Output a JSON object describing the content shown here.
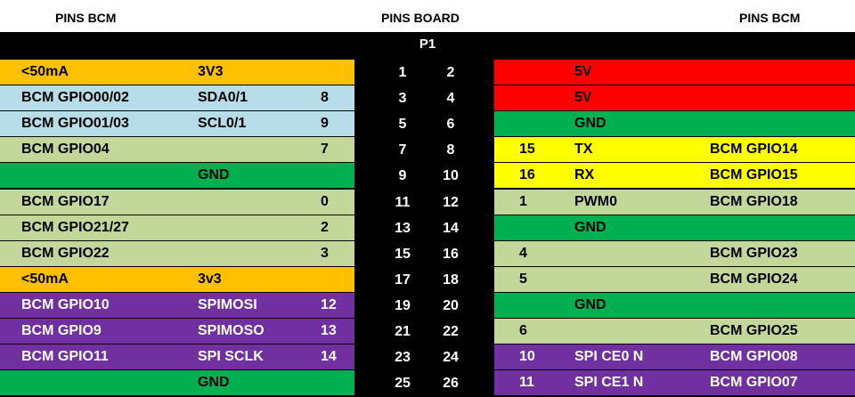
{
  "headers": {
    "left": "PINS BCM",
    "center": "PINS BOARD",
    "right": "PINS BCM"
  },
  "connector": "P1",
  "colors": {
    "orange": "#ffc000",
    "lightblue": "#b7dee8",
    "sage": "#c4d79b",
    "green": "#00b050",
    "purple": "#7030a0",
    "red": "#ff0000",
    "yellow": "#ffff00",
    "black": "#000000"
  },
  "rows": [
    {
      "left": {
        "color": "orange",
        "name": "<50mA",
        "func": "3V3",
        "wpi": ""
      },
      "pins": [
        "1",
        "2"
      ],
      "right": {
        "color": "red",
        "wpi": "",
        "func": "5V",
        "name": ""
      }
    },
    {
      "left": {
        "color": "lightblue",
        "name": "BCM GPIO00/02",
        "func": "SDA0/1",
        "wpi": "8"
      },
      "pins": [
        "3",
        "4"
      ],
      "right": {
        "color": "red",
        "wpi": "",
        "func": "5V",
        "name": ""
      }
    },
    {
      "left": {
        "color": "lightblue",
        "name": "BCM GPIO01/03",
        "func": "SCL0/1",
        "wpi": "9"
      },
      "pins": [
        "5",
        "6"
      ],
      "right": {
        "color": "green",
        "wpi": "",
        "func": "GND",
        "name": ""
      }
    },
    {
      "left": {
        "color": "sage",
        "name": "BCM GPIO04",
        "func": "",
        "wpi": "7"
      },
      "pins": [
        "7",
        "8"
      ],
      "right": {
        "color": "yellow",
        "wpi": "15",
        "func": "TX",
        "name": "BCM GPIO14"
      }
    },
    {
      "left": {
        "color": "green",
        "name": "",
        "func": "GND",
        "wpi": ""
      },
      "pins": [
        "9",
        "10"
      ],
      "right": {
        "color": "yellow",
        "wpi": "16",
        "func": "RX",
        "name": "BCM GPIO15"
      }
    },
    {
      "left": {
        "color": "sage",
        "name": "BCM GPIO17",
        "func": "",
        "wpi": "0"
      },
      "pins": [
        "11",
        "12"
      ],
      "right": {
        "color": "sage",
        "wpi": "1",
        "func": "PWM0",
        "name": "BCM GPIO18"
      }
    },
    {
      "left": {
        "color": "sage",
        "name": "BCM GPIO21/27",
        "func": "",
        "wpi": "2"
      },
      "pins": [
        "13",
        "14"
      ],
      "right": {
        "color": "green",
        "wpi": "",
        "func": "GND",
        "name": ""
      }
    },
    {
      "left": {
        "color": "sage",
        "name": "BCM GPIO22",
        "func": "",
        "wpi": "3"
      },
      "pins": [
        "15",
        "16"
      ],
      "right": {
        "color": "sage",
        "wpi": "4",
        "func": "",
        "name": "BCM GPIO23"
      }
    },
    {
      "left": {
        "color": "orange",
        "name": "<50mA",
        "func": "3v3",
        "wpi": ""
      },
      "pins": [
        "17",
        "18"
      ],
      "right": {
        "color": "sage",
        "wpi": "5",
        "func": "",
        "name": "BCM GPIO24"
      }
    },
    {
      "left": {
        "color": "purple",
        "name": "BCM GPIO10",
        "func": "SPIMOSI",
        "wpi": "12"
      },
      "pins": [
        "19",
        "20"
      ],
      "right": {
        "color": "green",
        "wpi": "",
        "func": "GND",
        "name": ""
      }
    },
    {
      "left": {
        "color": "purple",
        "name": "BCM GPIO9",
        "func": "SPIMOSO",
        "wpi": "13"
      },
      "pins": [
        "21",
        "22"
      ],
      "right": {
        "color": "sage",
        "wpi": "6",
        "func": "",
        "name": "BCM GPIO25"
      }
    },
    {
      "left": {
        "color": "purple",
        "name": "BCM GPIO11",
        "func": "SPI SCLK",
        "wpi": "14"
      },
      "pins": [
        "23",
        "24"
      ],
      "right": {
        "color": "purple",
        "wpi": "10",
        "func": "SPI CE0 N",
        "name": "BCM GPIO08"
      }
    },
    {
      "left": {
        "color": "green",
        "name": "",
        "func": "GND",
        "wpi": ""
      },
      "pins": [
        "25",
        "26"
      ],
      "right": {
        "color": "purple",
        "wpi": "11",
        "func": "SPI CE1 N",
        "name": "BCM GPIO07"
      }
    }
  ]
}
